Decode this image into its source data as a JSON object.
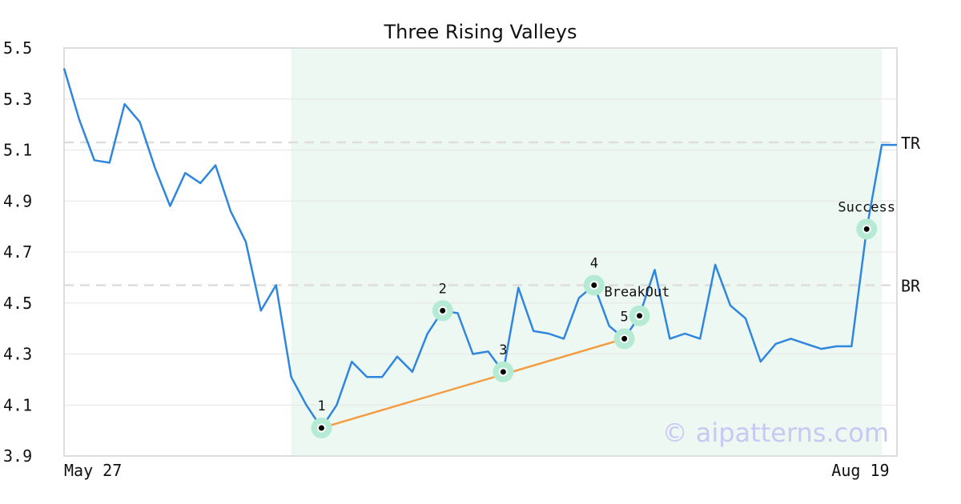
{
  "chart_data": {
    "type": "line",
    "title": "Three Rising Valleys",
    "xlabel": "",
    "ylabel": "",
    "x_range": [
      0,
      55
    ],
    "ylim": [
      3.9,
      5.5
    ],
    "yticks": [
      "3.9",
      "4.1",
      "4.3",
      "4.5",
      "4.7",
      "4.9",
      "5.1",
      "5.3",
      "5.5"
    ],
    "x_tick_labels": [
      {
        "x": 0,
        "label": "May 27",
        "anchor": "start"
      },
      {
        "x": 54.5,
        "label": "Aug 19",
        "anchor": "end"
      }
    ],
    "grid": true,
    "shaded_region": {
      "x_start": 15,
      "x_end": 54,
      "color": "#eef8f3"
    },
    "series": [
      {
        "color": "#2e86de",
        "values": [
          5.42,
          5.22,
          5.06,
          5.05,
          5.28,
          5.21,
          5.03,
          4.88,
          5.01,
          4.97,
          5.04,
          4.86,
          4.74,
          4.47,
          4.57,
          4.21,
          4.1,
          4.01,
          4.1,
          4.27,
          4.21,
          4.21,
          4.29,
          4.23,
          4.38,
          4.47,
          4.46,
          4.3,
          4.31,
          4.23,
          4.56,
          4.39,
          4.38,
          4.36,
          4.52,
          4.57,
          4.41,
          4.36,
          4.45,
          4.63,
          4.36,
          4.38,
          4.36,
          4.65,
          4.49,
          4.44,
          4.27,
          4.34,
          4.36,
          4.34,
          4.32,
          4.33,
          4.33,
          4.79,
          5.12,
          5.12
        ]
      }
    ],
    "levels": [
      {
        "label": "TR",
        "y": 5.13,
        "color": "#dddddd"
      },
      {
        "label": "BR",
        "y": 4.57,
        "color": "#dddddd"
      }
    ],
    "trendline": {
      "color": "#f39c42",
      "points": [
        [
          17,
          4.01
        ],
        [
          37,
          4.36
        ]
      ]
    },
    "annotations": [
      {
        "label": "1",
        "x": 17,
        "y": 4.01,
        "pos": "above"
      },
      {
        "label": "2",
        "x": 25,
        "y": 4.47,
        "pos": "above"
      },
      {
        "label": "3",
        "x": 29,
        "y": 4.23,
        "pos": "above"
      },
      {
        "label": "4",
        "x": 35,
        "y": 4.57,
        "pos": "above"
      },
      {
        "label": "5",
        "x": 37,
        "y": 4.36,
        "pos": "above-left"
      },
      {
        "label": "BreakOut",
        "x": 38,
        "y": 4.45,
        "pos": "above-right"
      },
      {
        "label": "Success",
        "x": 53,
        "y": 4.79,
        "pos": "above"
      }
    ],
    "marker_color": "#b5ebd4"
  },
  "watermark": "© aipatterns.com"
}
